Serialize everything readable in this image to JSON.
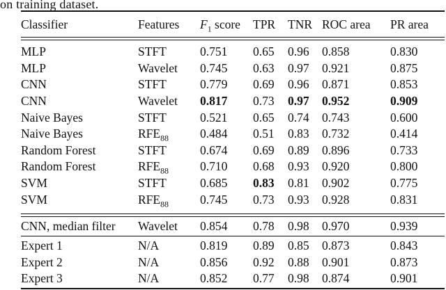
{
  "caption_fragment": "on training dataset.",
  "colors": {
    "text": "#111111",
    "background": "#ffffff",
    "rule": "#111111"
  },
  "table": {
    "columns": [
      {
        "key": "classifier",
        "label": "Classifier"
      },
      {
        "key": "features",
        "label": "Features"
      },
      {
        "key": "f1-score",
        "label": "*F*_1 score"
      },
      {
        "key": "tpr",
        "label": "TPR"
      },
      {
        "key": "tnr",
        "label": "TNR"
      },
      {
        "key": "roc-area",
        "label": "ROC area"
      },
      {
        "key": "pr-area",
        "label": "PR area"
      }
    ],
    "sections": [
      {
        "name": "ml-classifiers",
        "rows": [
          [
            "MLP",
            "STFT",
            "0.751",
            "0.65",
            "0.96",
            "0.858",
            "0.830"
          ],
          [
            "MLP",
            "Wavelet",
            "0.745",
            "0.63",
            "0.97",
            "0.921",
            "0.875"
          ],
          [
            "CNN",
            "STFT",
            "0.779",
            "0.69",
            "0.96",
            "0.871",
            "0.853"
          ],
          [
            "CNN",
            "Wavelet",
            "**0.817**",
            "0.73",
            "**0.97**",
            "**0.952**",
            "**0.909**"
          ],
          [
            "Naive Bayes",
            "STFT",
            "0.521",
            "0.65",
            "0.74",
            "0.743",
            "0.600"
          ],
          [
            "Naive Bayes",
            "RFE_88",
            "0.484",
            "0.51",
            "0.83",
            "0.732",
            "0.414"
          ],
          [
            "Random Forest",
            "STFT",
            "0.674",
            "0.69",
            "0.89",
            "0.896",
            "0.733"
          ],
          [
            "Random Forest",
            "RFE_88",
            "0.710",
            "0.68",
            "0.93",
            "0.920",
            "0.800"
          ],
          [
            "SVM",
            "STFT",
            "0.685",
            "**0.83**",
            "0.81",
            "0.902",
            "0.775"
          ],
          [
            "SVM",
            "RFE_88",
            "0.745",
            "0.73",
            "0.93",
            "0.928",
            "0.831"
          ]
        ]
      },
      {
        "name": "cnn-median-filter",
        "rows": [
          [
            "CNN, median filter",
            "Wavelet",
            "0.854",
            "0.78",
            "0.98",
            "0.970",
            "0.939"
          ]
        ]
      },
      {
        "name": "human-experts",
        "rows": [
          [
            "Expert 1",
            "N/A",
            "0.819",
            "0.89",
            "0.85",
            "0.873",
            "0.843"
          ],
          [
            "Expert 2",
            "N/A",
            "0.856",
            "0.92",
            "0.88",
            "0.901",
            "0.873"
          ],
          [
            "Expert 3",
            "N/A",
            "0.852",
            "0.77",
            "0.98",
            "0.874",
            "0.901"
          ]
        ]
      }
    ]
  }
}
